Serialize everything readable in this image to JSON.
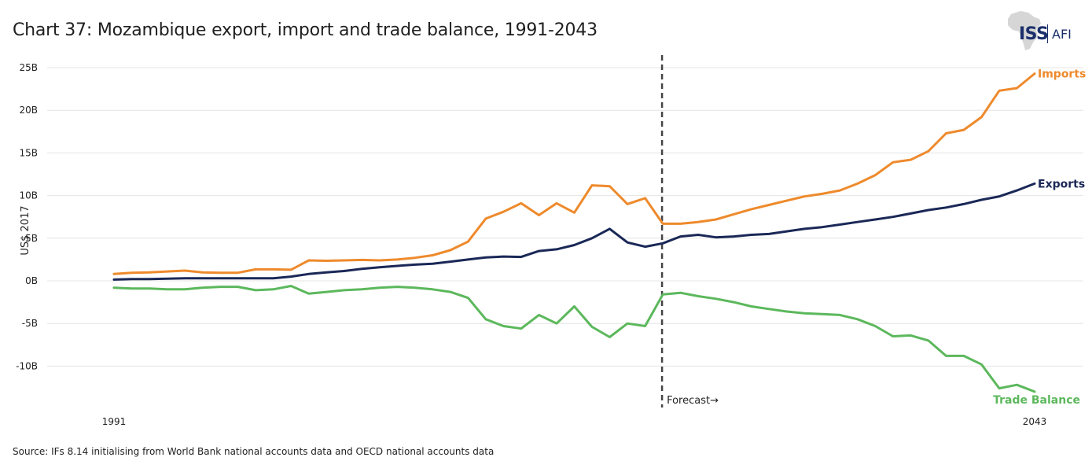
{
  "title": "Chart 37: Mozambique export, import and trade balance, 1991-2043",
  "logo": {
    "primary": "ISS",
    "secondary": "AFI"
  },
  "source": "Source: IFs 8.14 initialising from World Bank national accounts data and OECD national accounts data",
  "chart_data": {
    "type": "line",
    "title": "Chart 37: Mozambique export, import and trade balance, 1991-2043",
    "xlabel": "",
    "ylabel": "US$ 2017",
    "x_start": 1991,
    "x_end": 2043,
    "x_tick_labels": [
      "1991",
      "2043"
    ],
    "forecast_year": 2022,
    "forecast_label": "Forecast→",
    "y_ticks": [
      25,
      20,
      15,
      10,
      5,
      0,
      -5,
      -10
    ],
    "y_tick_labels": [
      "25B",
      "20B",
      "15B",
      "10B",
      "5B",
      "0B",
      "-5B",
      "-10B"
    ],
    "ylim": [
      -13.5,
      26.5
    ],
    "units": "billions US$ 2017",
    "grid": true,
    "x": [
      1991,
      1992,
      1993,
      1994,
      1995,
      1996,
      1997,
      1998,
      1999,
      2000,
      2001,
      2002,
      2003,
      2004,
      2005,
      2006,
      2007,
      2008,
      2009,
      2010,
      2011,
      2012,
      2013,
      2014,
      2015,
      2016,
      2017,
      2018,
      2019,
      2020,
      2021,
      2022,
      2023,
      2024,
      2025,
      2026,
      2027,
      2028,
      2029,
      2030,
      2031,
      2032,
      2033,
      2034,
      2035,
      2036,
      2037,
      2038,
      2039,
      2040,
      2041,
      2042,
      2043
    ],
    "series": [
      {
        "name": "Imports",
        "color": "#ee8a2c",
        "values": [
          0.8,
          0.95,
          1.0,
          1.1,
          1.2,
          1.0,
          0.95,
          0.95,
          1.35,
          1.35,
          1.3,
          2.4,
          2.35,
          2.4,
          2.45,
          2.4,
          2.5,
          2.7,
          3.0,
          3.6,
          4.6,
          7.3,
          8.1,
          9.1,
          7.7,
          9.1,
          8.0,
          11.2,
          11.1,
          9.0,
          9.7,
          6.7,
          6.7,
          6.9,
          7.2,
          7.8,
          8.4,
          8.9,
          9.4,
          9.9,
          10.2,
          10.6,
          11.4,
          12.4,
          13.9,
          14.2,
          15.2,
          17.3,
          17.7,
          19.2,
          22.3,
          22.6,
          24.3
        ]
      },
      {
        "name": "Exports",
        "color": "#1a2857",
        "values": [
          0.15,
          0.2,
          0.2,
          0.25,
          0.3,
          0.3,
          0.3,
          0.3,
          0.3,
          0.3,
          0.5,
          0.8,
          1.0,
          1.15,
          1.4,
          1.6,
          1.75,
          1.9,
          2.0,
          2.25,
          2.5,
          2.75,
          2.85,
          2.8,
          3.5,
          3.7,
          4.2,
          5.0,
          6.1,
          4.5,
          4.0,
          4.4,
          5.2,
          5.4,
          5.1,
          5.2,
          5.4,
          5.5,
          5.8,
          6.1,
          6.3,
          6.6,
          6.9,
          7.2,
          7.5,
          7.9,
          8.3,
          8.6,
          9.0,
          9.5,
          9.9,
          10.6,
          11.4
        ]
      },
      {
        "name": "Trade Balance",
        "color": "#5cb85c",
        "values": [
          -0.8,
          -0.9,
          -0.9,
          -1.0,
          -1.0,
          -0.8,
          -0.7,
          -0.7,
          -1.1,
          -1.0,
          -0.6,
          -1.5,
          -1.3,
          -1.1,
          -1.0,
          -0.8,
          -0.7,
          -0.8,
          -1.0,
          -1.3,
          -2.0,
          -4.5,
          -5.3,
          -5.6,
          -4.0,
          -5.0,
          -3.0,
          -5.4,
          -6.6,
          -5.0,
          -5.3,
          -1.6,
          -1.4,
          -1.8,
          -2.1,
          -2.5,
          -3.0,
          -3.3,
          -3.6,
          -3.8,
          -3.9,
          -4.0,
          -4.5,
          -5.3,
          -6.5,
          -6.4,
          -7.0,
          -8.8,
          -8.8,
          -9.8,
          -12.6,
          -12.2,
          -13.0
        ]
      }
    ]
  }
}
